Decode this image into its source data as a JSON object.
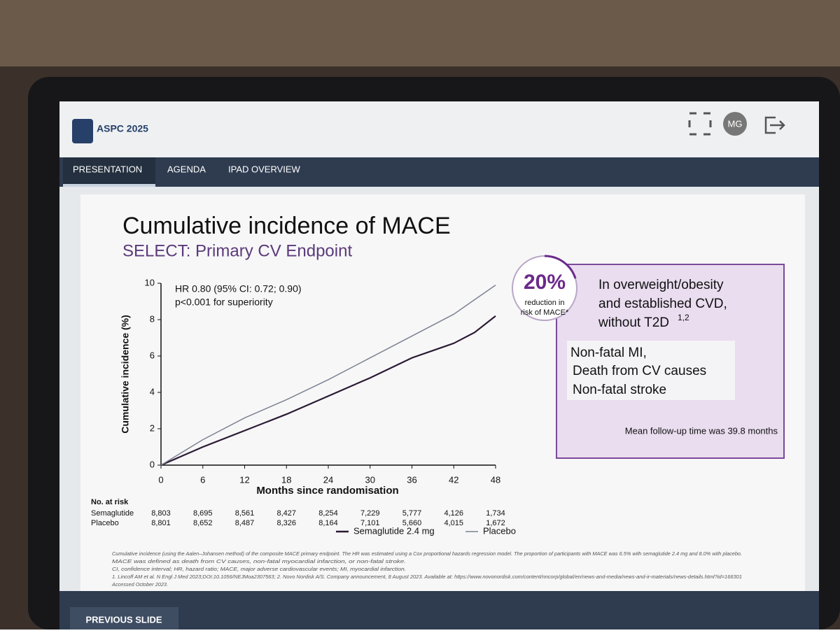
{
  "header": {
    "logo": "ASPC 2025",
    "avatar": "MG"
  },
  "nav": {
    "tabs": [
      "PRESENTATION",
      "AGENDA",
      "IPAD OVERVIEW"
    ]
  },
  "slide": {
    "title": "Cumulative incidence of MACE",
    "subtitle": "SELECT: Primary CV Endpoint",
    "callout": {
      "percent": "20%",
      "percent_caption": [
        "reduction in",
        "risk of MACE*"
      ],
      "population": [
        "In overweight/obesity",
        "and established CVD,",
        "without T2D"
      ],
      "population_sup": "1,2",
      "components": [
        "Non-fatal MI,",
        "Death from CV causes",
        "Non-fatal stroke"
      ],
      "follow_up": "Mean follow-up time was 39.8 months"
    },
    "footnotes": [
      "Cumulative incidence (using the Aalen–Johansen method) of the composite MACE primary endpoint. The HR was estimated using a Cox proportional hazards regression model. The proportion of participants with MACE was 6.5% with semaglutide 2.4 mg and 8.0% with placebo.",
      "MACE was defined as death from CV causes, non-fatal myocardial infarction, or non-fatal stroke.",
      "CI, confidence interval; HR, hazard ratio; MACE, major adverse cardiovascular events; MI, myocardial infarction.",
      "1. Lincoff AM et al. N Engl J Med 2023;DOI:10.1056/NEJMoa2307563; 2. Novo Nordisk A/S. Company announcement, 8 August 2023. Available at: https://www.novonordisk.com/content/nncorp/global/en/news-and-media/news-and-ir-materials/news-details.html?id=166301",
      "Accessed October 2023."
    ]
  },
  "chart_data": {
    "type": "line",
    "annotations": [
      "HR 0.80 (95% CI: 0.72; 0.90)",
      "p<0.001 for superiority"
    ],
    "y_label": "Cumulative incidence (%)",
    "x_label": "Months since randomisation",
    "x": [
      0,
      6,
      12,
      18,
      24,
      30,
      36,
      42,
      45,
      48
    ],
    "series": [
      {
        "name": "Semaglutide 2.4 mg",
        "color": "#2a1a33",
        "values": [
          0,
          1.0,
          1.9,
          2.8,
          3.8,
          4.8,
          5.9,
          6.7,
          7.3,
          8.2
        ]
      },
      {
        "name": "Placebo",
        "color": "#7d8290",
        "values": [
          0,
          1.4,
          2.6,
          3.6,
          4.7,
          5.9,
          7.1,
          8.3,
          9.1,
          9.9
        ]
      }
    ],
    "xlim": [
      0,
      48
    ],
    "xticks": [
      0,
      6,
      12,
      18,
      24,
      30,
      36,
      42,
      48
    ],
    "ylim": [
      0,
      10
    ],
    "yticks": [
      0,
      2,
      4,
      6,
      8,
      10
    ]
  },
  "risk_table": {
    "title": "No. at risk",
    "rows": [
      {
        "name": "Semaglutide",
        "values": [
          "8,803",
          "8,695",
          "8,561",
          "8,427",
          "8,254",
          "7,229",
          "5,777",
          "4,126",
          "1,734"
        ]
      },
      {
        "name": "Placebo",
        "values": [
          "8,801",
          "8,652",
          "8,487",
          "8,326",
          "8,164",
          "7,101",
          "5,660",
          "4,015",
          "1,672"
        ]
      }
    ]
  },
  "footer": {
    "button": "PREVIOUS SLIDE"
  }
}
